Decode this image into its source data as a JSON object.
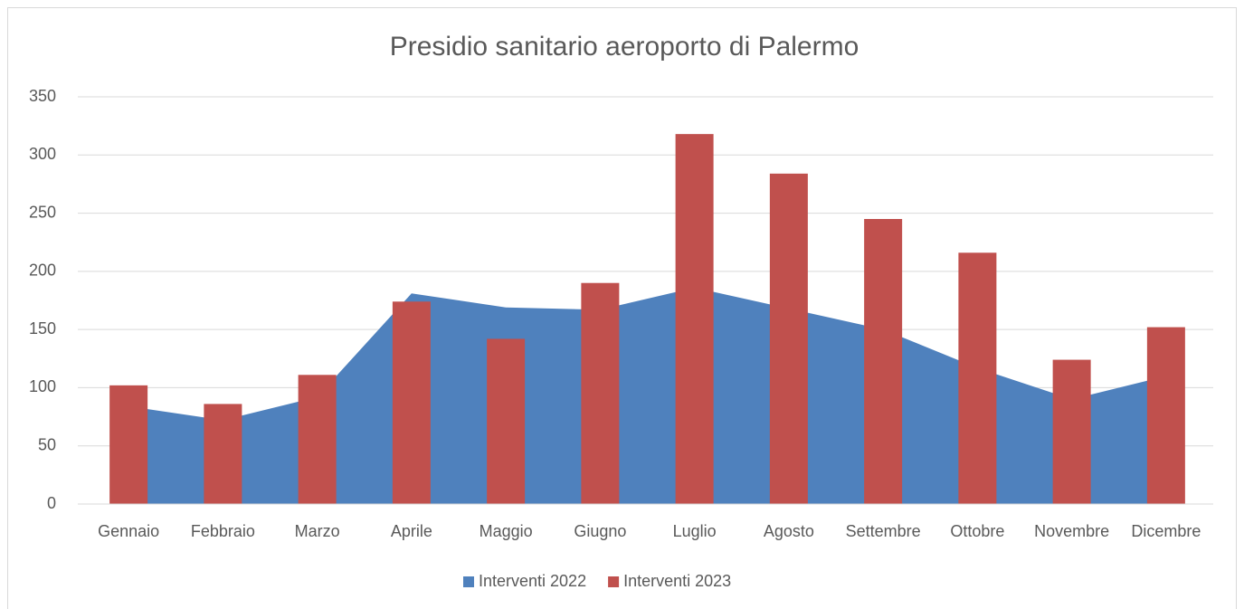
{
  "chart_data": {
    "type": "combo",
    "title": "Presidio sanitario aeroporto di Palermo",
    "categories": [
      "Gennaio",
      "Febbraio",
      "Marzo",
      "Aprile",
      "Maggio",
      "Giugno",
      "Luglio",
      "Agosto",
      "Settembre",
      "Ottobre",
      "Novembre",
      "Dicembre"
    ],
    "series": [
      {
        "name": "Interventi 2022",
        "type": "area",
        "color": "#4f81bd",
        "values": [
          84,
          72,
          92,
          181,
          169,
          167,
          186,
          168,
          150,
          117,
          90,
          110
        ]
      },
      {
        "name": "Interventi 2023",
        "type": "bar",
        "color": "#c0504d",
        "values": [
          102,
          86,
          111,
          174,
          142,
          190,
          318,
          284,
          245,
          216,
          124,
          152
        ]
      }
    ],
    "ylim": [
      0,
      350
    ],
    "yticks": [
      0,
      50,
      100,
      150,
      200,
      250,
      300,
      350
    ],
    "grid": true,
    "legend": "bottom"
  }
}
